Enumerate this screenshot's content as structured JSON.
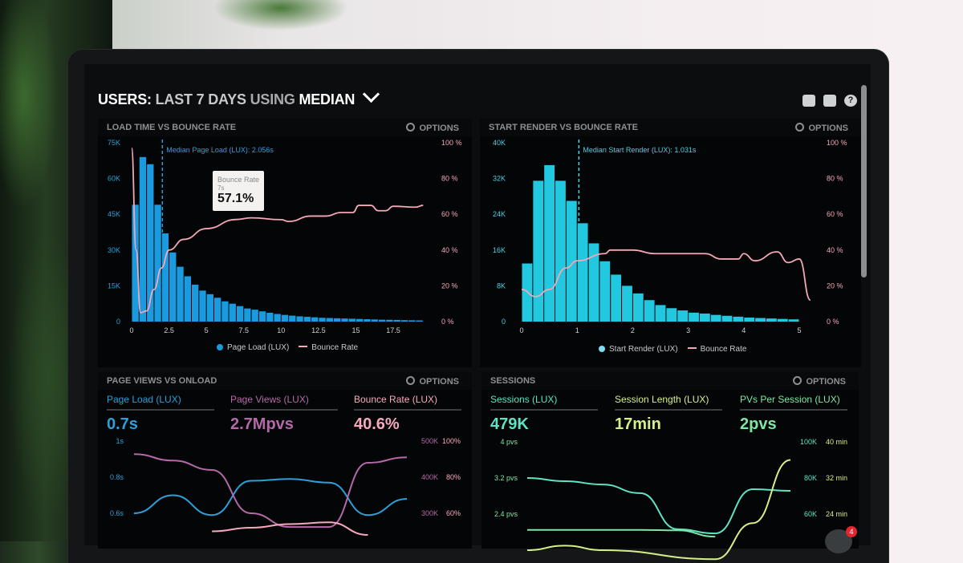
{
  "header": {
    "title_parts": [
      "USERS:",
      "LAST 7 DAYS",
      "USING",
      "MEDIAN"
    ],
    "icons": [
      "monitor-icon",
      "share-icon",
      "help-icon"
    ],
    "help_glyph": "?"
  },
  "panels": {
    "load_time": {
      "title": "LOAD TIME VS BOUNCE RATE",
      "options": "OPTIONS"
    },
    "start_render": {
      "title": "START RENDER VS BOUNCE RATE",
      "options": "OPTIONS"
    },
    "page_views": {
      "title": "PAGE VIEWS VS ONLOAD",
      "options": "OPTIONS"
    },
    "sessions": {
      "title": "SESSIONS",
      "options": "OPTIONS"
    }
  },
  "tooltip": {
    "label": "Bounce Rate",
    "x": "7s",
    "value": "57.1%"
  },
  "metrics_left": [
    {
      "label": "Page Load (LUX)",
      "value": "0.7s",
      "color": "#2e9fd8"
    },
    {
      "label": "Page Views (LUX)",
      "value": "2.7Mpvs",
      "color": "#b469a8"
    },
    {
      "label": "Bounce Rate (LUX)",
      "value": "40.6%",
      "color": "#f5a9bd"
    }
  ],
  "metrics_right": [
    {
      "label": "Sessions (LUX)",
      "value": "479K",
      "color": "#5fe3c3"
    },
    {
      "label": "Session Length (LUX)",
      "value": "17min",
      "color": "#d6ef8a"
    },
    {
      "label": "PVs Per Session (LUX)",
      "value": "2pvs",
      "color": "#7fe6a6"
    }
  ],
  "notification": {
    "count": "4"
  },
  "chart_data": [
    {
      "type": "bar",
      "title": "LOAD TIME VS BOUNCE RATE",
      "annotation": "Median Page Load (LUX): 2.056s",
      "median": 2.056,
      "x_ticks": [
        "0",
        "2.5",
        "5",
        "7.5",
        "10",
        "12.5",
        "15",
        "17.5"
      ],
      "x_tick_values": [
        0,
        2.5,
        5,
        7.5,
        10,
        12.5,
        15,
        17.5
      ],
      "y_ticks": [
        "0",
        "15K",
        "30K",
        "45K",
        "60K",
        "75K"
      ],
      "y2_ticks": [
        "0 %",
        "20 %",
        "40 %",
        "60 %",
        "80 %",
        "100 %"
      ],
      "ylim": [
        0,
        75
      ],
      "y2lim": [
        0,
        100
      ],
      "bin_width": 0.5,
      "series": [
        {
          "name": "Page Load (LUX)",
          "color": "#1a9be0",
          "unit": "K",
          "values": [
            49,
            69,
            66,
            49,
            37,
            29,
            23,
            19,
            15.5,
            13,
            11.5,
            10,
            8.5,
            7.5,
            6.5,
            5.5,
            5,
            4.3,
            3.7,
            3.2,
            2.8,
            2.5,
            2.2,
            2,
            1.8,
            1.6,
            1.5,
            1.4,
            1.3,
            1.2,
            1.1,
            1,
            0.9,
            0.8,
            0.75,
            0.7,
            0.6,
            0.55,
            0.5
          ]
        },
        {
          "name": "Bounce Rate",
          "color": "#f4a7b9",
          "unit": "%",
          "points": [
            [
              0,
              97
            ],
            [
              0.3,
              40
            ],
            [
              0.6,
              5
            ],
            [
              1,
              6
            ],
            [
              1.5,
              18
            ],
            [
              2,
              30
            ],
            [
              2.5,
              40
            ],
            [
              3.5,
              46
            ],
            [
              5,
              52
            ],
            [
              7,
              57.1
            ],
            [
              8,
              58
            ],
            [
              10,
              57
            ],
            [
              10.5,
              56
            ],
            [
              12,
              59
            ],
            [
              13,
              59
            ],
            [
              14,
              61
            ],
            [
              14.8,
              61
            ],
            [
              15.2,
              65
            ],
            [
              16,
              65
            ],
            [
              16.5,
              62
            ],
            [
              17,
              62
            ],
            [
              17.5,
              64.5
            ],
            [
              19,
              64
            ],
            [
              19.5,
              65
            ]
          ]
        }
      ]
    },
    {
      "type": "bar",
      "title": "START RENDER VS BOUNCE RATE",
      "annotation": "Median Start Render (LUX): 1.031s",
      "median": 1.031,
      "x_ticks": [
        "0",
        "1",
        "2",
        "3",
        "4",
        "5"
      ],
      "x_tick_values": [
        0,
        1,
        2,
        3,
        4,
        5
      ],
      "y_ticks": [
        "0",
        "8K",
        "16K",
        "24K",
        "32K",
        "40K"
      ],
      "y2_ticks": [
        "0 %",
        "20 %",
        "40 %",
        "60 %",
        "80 %",
        "100 %"
      ],
      "ylim": [
        0,
        40
      ],
      "y2lim": [
        0,
        100
      ],
      "bin_width": 0.2,
      "series": [
        {
          "name": "Start Render (LUX)",
          "color": "#22c8e0",
          "unit": "K",
          "values": [
            13,
            31.5,
            35,
            31.5,
            27,
            22,
            17.5,
            13.5,
            10.5,
            8,
            6.3,
            4.8,
            3.7,
            3,
            2.5,
            2,
            1.8,
            1.5,
            1.3,
            1.1,
            0.9,
            0.8,
            0.7,
            0.6,
            0.5
          ]
        },
        {
          "name": "Bounce Rate",
          "color": "#f4a7b9",
          "unit": "%",
          "points": [
            [
              0,
              18
            ],
            [
              0.25,
              14
            ],
            [
              0.5,
              18
            ],
            [
              0.8,
              30
            ],
            [
              1,
              34
            ],
            [
              1.5,
              38
            ],
            [
              1.6,
              40
            ],
            [
              2,
              40
            ],
            [
              2.4,
              38
            ],
            [
              3,
              38
            ],
            [
              3.3,
              38
            ],
            [
              3.6,
              35
            ],
            [
              3.9,
              35
            ],
            [
              4,
              38
            ],
            [
              4.2,
              34
            ],
            [
              4.6,
              39
            ],
            [
              4.8,
              33
            ],
            [
              5,
              35
            ],
            [
              5.2,
              12
            ]
          ]
        }
      ]
    },
    {
      "type": "line",
      "title": "PAGE VIEWS VS ONLOAD",
      "y_ticks": [
        "0.6s",
        "0.8s",
        "1s"
      ],
      "ylim": [
        0.6,
        1.0
      ],
      "y2_ticks": [
        "300K",
        "400K",
        "500K"
      ],
      "y2lim": [
        300,
        500
      ],
      "y3_ticks": [
        "60%",
        "80%",
        "100%"
      ],
      "y3lim": [
        60,
        100
      ],
      "series": [
        {
          "axis": "y",
          "color": "#2e9fd8",
          "values": [
            0.6,
            0.7,
            0.59,
            0.78,
            0.79,
            0.77,
            0.59,
            0.68
          ]
        },
        {
          "axis": "y2",
          "color": "#b469a8",
          "values": [
            464,
            446,
            420,
            300,
            262,
            262,
            440,
            455
          ]
        },
        {
          "axis": "y3",
          "color": "#f5a9bd",
          "values": [
            null,
            null,
            50,
            52,
            54,
            55,
            48,
            null
          ]
        }
      ]
    },
    {
      "type": "line",
      "title": "SESSIONS",
      "y_ticks": [
        "2.4 pvs",
        "3.2 pvs",
        "4 pvs"
      ],
      "ylim": [
        2.4,
        4
      ],
      "y2_ticks": [
        "60K",
        "80K",
        "100K"
      ],
      "y2lim": [
        60,
        100
      ],
      "y3_ticks": [
        "24 min",
        "32 min",
        "40 min"
      ],
      "y3lim": [
        24,
        40
      ],
      "series": [
        {
          "axis": "y2",
          "color": "#5fe3c3",
          "values": [
            80,
            78.2,
            76.4,
            71.6,
            51.6,
            49.3,
            73.8,
            72.9
          ]
        },
        {
          "axis": "y",
          "color": "#7fe6a6",
          "values": [
            2.05,
            2.05,
            2.05,
            2.05,
            2.04,
            1.9,
            null,
            null
          ]
        },
        {
          "axis": "y3",
          "color": "#d6ef8a",
          "values": [
            16,
            17,
            16,
            null,
            null,
            14,
            22,
            36
          ]
        }
      ]
    }
  ]
}
